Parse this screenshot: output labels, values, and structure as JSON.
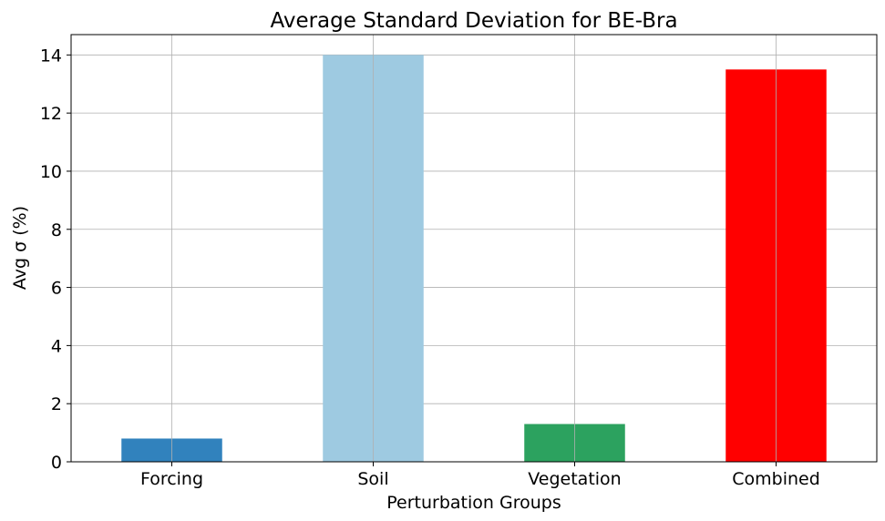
{
  "chart_data": {
    "type": "bar",
    "title": "Average Standard Deviation for BE-Bra",
    "xlabel": "Perturbation Groups",
    "ylabel": "Avg σ (%)",
    "categories": [
      "Forcing",
      "Soil",
      "Vegetation",
      "Combined"
    ],
    "values": [
      0.8,
      14.0,
      1.3,
      13.5
    ],
    "colors": [
      "#3182bd",
      "#9ecae1",
      "#2ca25f",
      "#ff0000"
    ],
    "ylim": [
      0,
      14.7
    ],
    "yticks": [
      0,
      2,
      4,
      6,
      8,
      10,
      12,
      14
    ],
    "grid": true,
    "legend": "none"
  }
}
